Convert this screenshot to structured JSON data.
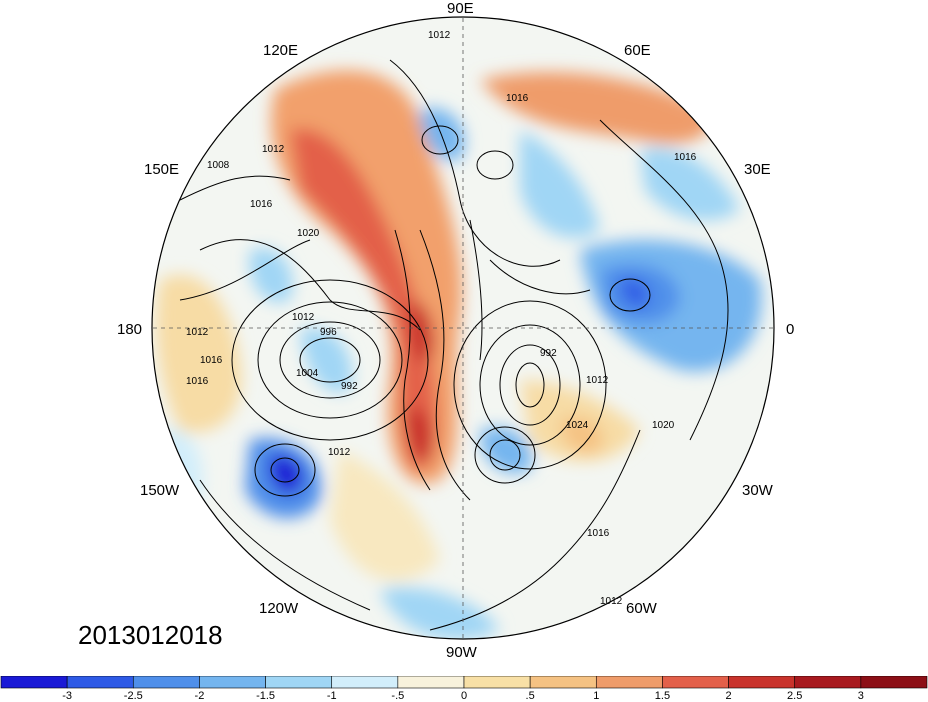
{
  "map": {
    "projection": "north-polar-stereographic",
    "timestamp": "2013012018",
    "longitude_labels": [
      "90E",
      "120E",
      "60E",
      "150E",
      "30E",
      "180",
      "0",
      "150W",
      "30W",
      "120W",
      "60W",
      "90W"
    ],
    "isobar_labels": [
      "1012",
      "1016",
      "1016",
      "1008",
      "1012",
      "1016",
      "1020",
      "1012",
      "1012",
      "996",
      "1016",
      "1004",
      "992",
      "992",
      "1016",
      "1012",
      "1012",
      "1024",
      "1020",
      "1016",
      "1012"
    ],
    "colorbar": {
      "ticks": [
        "-3",
        "-2.5",
        "-2",
        "-1.5",
        "-1",
        "-.5",
        "0",
        ".5",
        "1",
        "1.5",
        "2",
        "2.5",
        "3"
      ],
      "colors": [
        "#1a1ad6",
        "#2e5ae6",
        "#4f8fea",
        "#74b5ef",
        "#a0d6f5",
        "#d2eefb",
        "#f8f2dc",
        "#f8e0a6",
        "#f5c283",
        "#ef9c6a",
        "#e3604a",
        "#c9332c",
        "#a81a1f"
      ]
    }
  }
}
